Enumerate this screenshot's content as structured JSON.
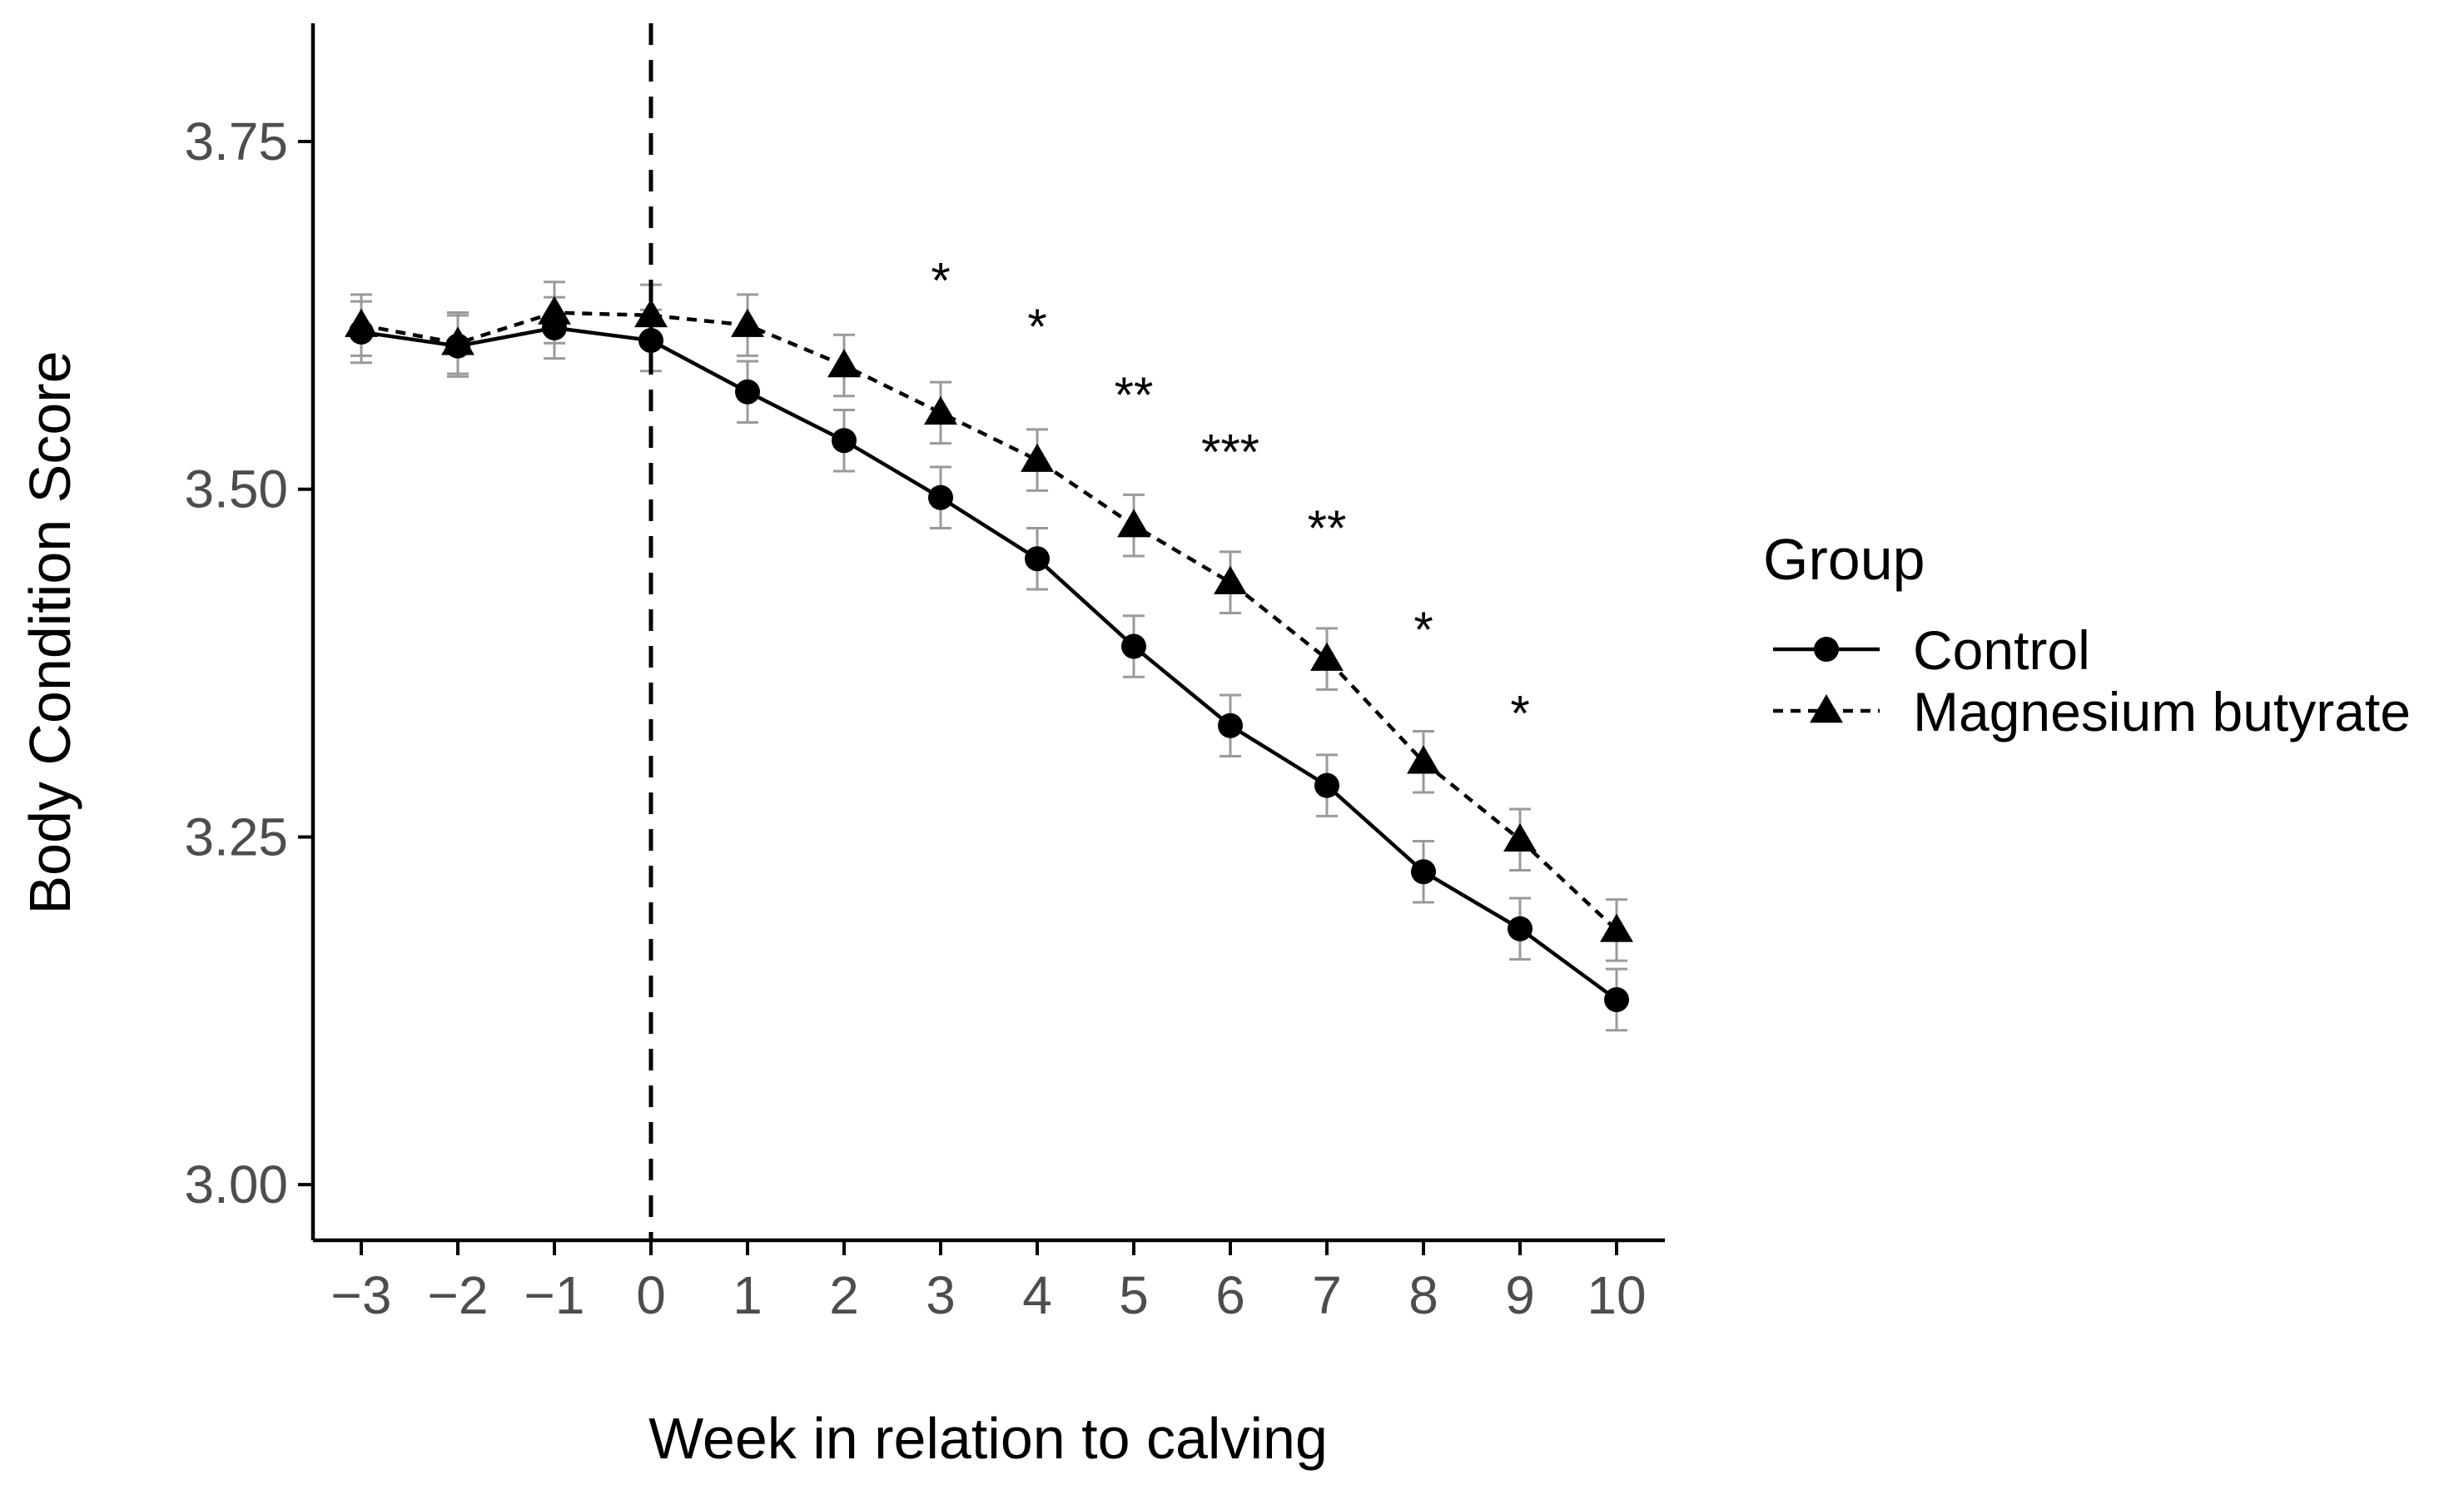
{
  "chart_data": {
    "type": "line",
    "title": "",
    "xlabel": "Week in relation to calving",
    "ylabel": "Body Condition Score",
    "xlim": [
      -3.5,
      10.5
    ],
    "ylim": [
      2.96,
      3.835
    ],
    "x_ticks": [
      -3,
      -2,
      -1,
      0,
      1,
      2,
      3,
      4,
      5,
      6,
      7,
      8,
      9,
      10
    ],
    "x_tick_labels": [
      "−3",
      "−2",
      "−1",
      "0",
      "1",
      "2",
      "3",
      "4",
      "5",
      "6",
      "7",
      "8",
      "9",
      "10"
    ],
    "y_ticks": [
      3.0,
      3.25,
      3.5,
      3.75
    ],
    "y_tick_labels": [
      "3.00",
      "3.25",
      "3.50",
      "3.75"
    ],
    "vline_x": 0,
    "legend": {
      "title": "Group",
      "position": "right"
    },
    "series": [
      {
        "name": "Control",
        "marker": "circle",
        "line_style": "solid",
        "color": "#000000",
        "x": [
          -3,
          -2,
          -1,
          0,
          1,
          2,
          3,
          4,
          5,
          6,
          7,
          8,
          9,
          10
        ],
        "values": [
          3.613,
          3.603,
          3.616,
          3.607,
          3.57,
          3.535,
          3.494,
          3.45,
          3.387,
          3.33,
          3.287,
          3.225,
          3.184,
          3.133
        ],
        "error": [
          0.022,
          0.022,
          0.022,
          0.022,
          0.022,
          0.022,
          0.022,
          0.022,
          0.022,
          0.022,
          0.022,
          0.022,
          0.022,
          0.022
        ]
      },
      {
        "name": "Magnesium butyrate",
        "marker": "triangle",
        "line_style": "dashed",
        "color": "#000000",
        "x": [
          -3,
          -2,
          -1,
          0,
          1,
          2,
          3,
          4,
          5,
          6,
          7,
          8,
          9,
          10
        ],
        "values": [
          3.618,
          3.605,
          3.627,
          3.625,
          3.618,
          3.589,
          3.555,
          3.521,
          3.474,
          3.433,
          3.378,
          3.304,
          3.248,
          3.183
        ],
        "error": [
          0.022,
          0.022,
          0.022,
          0.022,
          0.022,
          0.022,
          0.022,
          0.022,
          0.022,
          0.022,
          0.022,
          0.022,
          0.022,
          0.022
        ]
      }
    ],
    "significance": [
      {
        "x": 3,
        "y": 3.658,
        "label": "*"
      },
      {
        "x": 4,
        "y": 3.625,
        "label": "*"
      },
      {
        "x": 5,
        "y": 3.576,
        "label": "**"
      },
      {
        "x": 6,
        "y": 3.535,
        "label": "***"
      },
      {
        "x": 7,
        "y": 3.48,
        "label": "**"
      },
      {
        "x": 8,
        "y": 3.407,
        "label": "*"
      },
      {
        "x": 9,
        "y": 3.347,
        "label": "*"
      }
    ],
    "colors": {
      "ink": "#000000",
      "error_bar": "#9a9a9a",
      "tick_text": "#4d4d4d"
    }
  }
}
